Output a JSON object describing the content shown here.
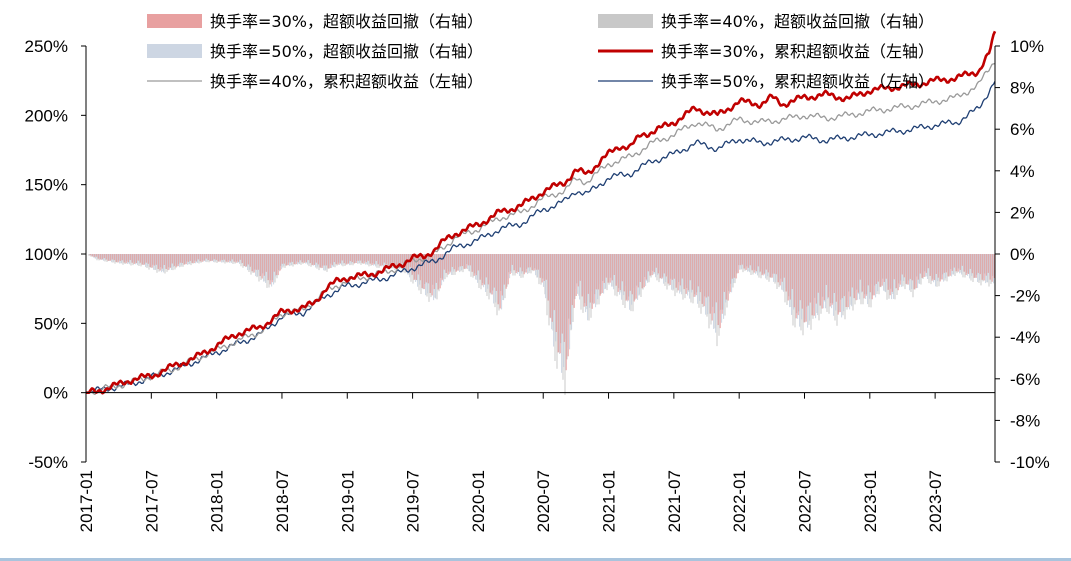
{
  "chart_data": {
    "type": "line+bar",
    "title": "",
    "left_axis": {
      "label": "累积超额收益",
      "ylim": [
        -50,
        250
      ],
      "ticks": [
        "-50%",
        "0%",
        "50%",
        "100%",
        "150%",
        "200%",
        "250%"
      ],
      "tick_values": [
        -50,
        0,
        50,
        100,
        150,
        200,
        250
      ]
    },
    "right_axis": {
      "label": "超额收益回撤",
      "ylim": [
        -10,
        10
      ],
      "ticks": [
        "-10%",
        "-8%",
        "-6%",
        "-4%",
        "-2%",
        "0%",
        "2%",
        "4%",
        "6%",
        "8%",
        "10%"
      ],
      "tick_values": [
        -10,
        -8,
        -6,
        -4,
        -2,
        0,
        2,
        4,
        6,
        8,
        10
      ]
    },
    "x_ticks": [
      "2017-01",
      "2017-07",
      "2018-01",
      "2018-07",
      "2019-01",
      "2019-07",
      "2020-01",
      "2020-07",
      "2021-01",
      "2021-07",
      "2022-01",
      "2022-07",
      "2023-01",
      "2023-07"
    ],
    "x_range_months": [
      0,
      83.5
    ],
    "legend": [
      {
        "label": "换手率=30%，超额收益回撤（右轴）",
        "kind": "bar",
        "color": "#e8a0a0"
      },
      {
        "label": "换手率=40%，超额收益回撤（右轴）",
        "kind": "bar",
        "color": "#c8c8c8"
      },
      {
        "label": "换手率=50%，超额收益回撤（右轴）",
        "kind": "bar",
        "color": "#cdd6e3"
      },
      {
        "label": "换手率=30%，累积超额收益（左轴）",
        "kind": "line",
        "color": "#c00000"
      },
      {
        "label": "换手率=40%，累积超额收益（左轴）",
        "kind": "line",
        "color": "#9a9a9a"
      },
      {
        "label": "换手率=50%，累积超额收益（左轴）",
        "kind": "line",
        "color": "#1f3f73"
      }
    ],
    "series": [
      {
        "name": "换手率=30%，累积超额收益（左轴）",
        "axis": "left",
        "x_month": [
          0,
          2,
          3,
          4,
          6,
          8,
          10,
          12,
          14,
          16,
          18,
          19,
          20,
          21,
          22,
          23,
          24,
          26,
          28,
          29,
          30,
          31,
          32,
          33,
          34,
          35,
          36,
          38,
          40,
          42,
          44,
          45,
          46,
          47,
          48,
          49,
          50,
          51,
          52,
          54,
          56,
          58,
          60,
          62,
          63,
          64,
          66,
          68,
          70,
          72,
          74,
          76,
          78,
          80,
          82,
          83,
          83.5
        ],
        "values": [
          0,
          3,
          6,
          9,
          12,
          19,
          25,
          34,
          43,
          47,
          58,
          60,
          61,
          65,
          75,
          80,
          83,
          85,
          90,
          93,
          97,
          98,
          103,
          110,
          115,
          118,
          121,
          130,
          135,
          145,
          152,
          160,
          158,
          165,
          172,
          178,
          177,
          186,
          188,
          195,
          205,
          200,
          210,
          208,
          213,
          208,
          213,
          215,
          212,
          218,
          220,
          222,
          225,
          227,
          232,
          245,
          260
        ]
      },
      {
        "name": "换手率=40%，累积超额收益（左轴）",
        "axis": "left",
        "x_month": [
          0,
          4,
          8,
          12,
          16,
          18,
          20,
          22,
          24,
          26,
          28,
          30,
          32,
          34,
          36,
          38,
          40,
          42,
          44,
          45,
          46,
          48,
          50,
          52,
          54,
          56,
          58,
          60,
          62,
          64,
          66,
          68,
          70,
          72,
          74,
          76,
          78,
          80,
          82,
          83.5
        ],
        "values": [
          0,
          7,
          17,
          31,
          44,
          57,
          60,
          73,
          81,
          84,
          88,
          95,
          100,
          112,
          118,
          126,
          130,
          140,
          146,
          154,
          152,
          165,
          170,
          180,
          186,
          195,
          190,
          197,
          195,
          197,
          200,
          198,
          200,
          203,
          205,
          207,
          210,
          213,
          222,
          240
        ]
      },
      {
        "name": "换手率=50%，累积超额收益（左轴）",
        "axis": "left",
        "x_month": [
          0,
          4,
          8,
          12,
          16,
          18,
          20,
          22,
          24,
          26,
          28,
          30,
          32,
          34,
          36,
          38,
          40,
          42,
          44,
          45,
          46,
          48,
          50,
          52,
          54,
          56,
          58,
          60,
          62,
          64,
          66,
          68,
          70,
          72,
          74,
          76,
          78,
          80,
          82,
          83.5
        ],
        "values": [
          0,
          6,
          16,
          29,
          42,
          55,
          58,
          70,
          77,
          80,
          84,
          90,
          95,
          105,
          110,
          118,
          122,
          132,
          138,
          146,
          143,
          155,
          158,
          167,
          172,
          180,
          176,
          183,
          180,
          182,
          184,
          182,
          184,
          186,
          188,
          190,
          193,
          195,
          205,
          225
        ]
      },
      {
        "name": "超额收益回撤（右轴）",
        "axis": "right",
        "kind": "drawdown_bars",
        "x_month": [
          0,
          1,
          3,
          5,
          7,
          9,
          11,
          14,
          17,
          18,
          19,
          20,
          22,
          23,
          24,
          25,
          27,
          29,
          31,
          32,
          33,
          35,
          36,
          37,
          38,
          39,
          40,
          41,
          42,
          43,
          44,
          45,
          46,
          48,
          50,
          52,
          54,
          56,
          57,
          58,
          59,
          60,
          62,
          63,
          64,
          65,
          66,
          67,
          68,
          69,
          70,
          71,
          72,
          73,
          74,
          75,
          76,
          77,
          78,
          80,
          82,
          83.5
        ],
        "values": [
          0,
          -0.3,
          -0.5,
          -0.6,
          -1.0,
          -0.6,
          -0.4,
          -0.5,
          -1.8,
          -0.7,
          -0.6,
          -0.5,
          -0.9,
          -0.6,
          -0.6,
          -0.5,
          -0.7,
          -0.8,
          -2.1,
          -2.5,
          -1.2,
          -0.8,
          -1.6,
          -2.2,
          -3.2,
          -1.0,
          -1.2,
          -0.9,
          -1.8,
          -5.2,
          -6.8,
          -2.0,
          -3.5,
          -1.6,
          -3.0,
          -1.1,
          -2.0,
          -2.5,
          -3.3,
          -4.5,
          -2.4,
          -0.8,
          -1.2,
          -1.4,
          -2.0,
          -3.6,
          -4.0,
          -3.4,
          -2.8,
          -3.5,
          -3.0,
          -2.4,
          -2.7,
          -1.8,
          -2.5,
          -1.6,
          -2.1,
          -1.2,
          -1.7,
          -1.0,
          -1.5,
          -1.6
        ]
      }
    ]
  }
}
